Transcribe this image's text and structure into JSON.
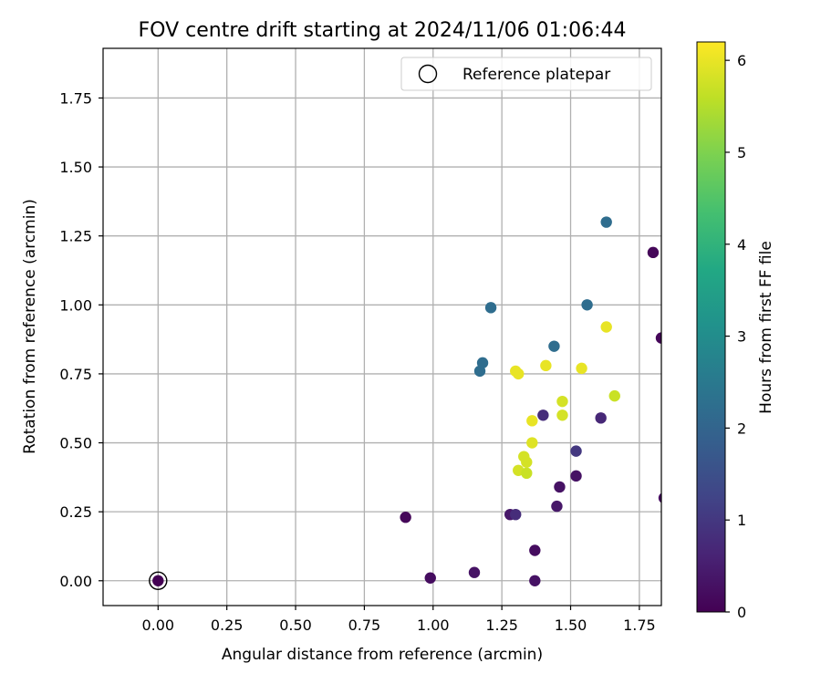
{
  "chart_data": {
    "type": "scatter",
    "title": "FOV centre drift starting at 2024/11/06 01:06:44",
    "xlabel": "Angular distance from reference (arcmin)",
    "ylabel": "Rotation from reference (arcmin)",
    "xlim": [
      -0.2,
      1.83
    ],
    "ylim": [
      -0.09,
      1.93
    ],
    "xticks": [
      "0.00",
      "0.25",
      "0.50",
      "0.75",
      "1.00",
      "1.25",
      "1.50",
      "1.75"
    ],
    "yticks": [
      "0.00",
      "0.25",
      "0.50",
      "0.75",
      "1.00",
      "1.25",
      "1.50",
      "1.75"
    ],
    "grid": true,
    "legend": {
      "placement": "top-right",
      "entries": [
        {
          "label": "Reference platepar",
          "marker": "open-circle"
        }
      ]
    },
    "reference_point": {
      "x": 0.0,
      "y": 0.0
    },
    "colorbar": {
      "label": "Hours from first FF file",
      "min": 0,
      "max": 6.2,
      "ticks": [
        "0",
        "1",
        "2",
        "3",
        "4",
        "5",
        "6"
      ],
      "colormap": "viridis"
    },
    "points": [
      {
        "x": 0.0,
        "y": 0.0,
        "h": 0.0
      },
      {
        "x": 0.9,
        "y": 0.23,
        "h": 0.1
      },
      {
        "x": 0.99,
        "y": 0.01,
        "h": 0.2
      },
      {
        "x": 1.15,
        "y": 0.03,
        "h": 0.3
      },
      {
        "x": 1.28,
        "y": 0.24,
        "h": 0.4
      },
      {
        "x": 1.3,
        "y": 0.24,
        "h": 0.8
      },
      {
        "x": 1.37,
        "y": 0.11,
        "h": 0.2
      },
      {
        "x": 1.37,
        "y": 0.0,
        "h": 0.3
      },
      {
        "x": 1.45,
        "y": 0.27,
        "h": 0.4
      },
      {
        "x": 1.46,
        "y": 0.34,
        "h": 0.3
      },
      {
        "x": 1.52,
        "y": 0.38,
        "h": 0.3
      },
      {
        "x": 1.52,
        "y": 0.47,
        "h": 1.0
      },
      {
        "x": 1.4,
        "y": 0.6,
        "h": 0.8
      },
      {
        "x": 1.61,
        "y": 0.59,
        "h": 0.7
      },
      {
        "x": 1.8,
        "y": 1.19,
        "h": 0.1
      },
      {
        "x": 1.83,
        "y": 0.88,
        "h": 0.1
      },
      {
        "x": 1.84,
        "y": 0.3,
        "h": 0.2
      },
      {
        "x": 1.17,
        "y": 0.76,
        "h": 2.2
      },
      {
        "x": 1.18,
        "y": 0.79,
        "h": 2.2
      },
      {
        "x": 1.21,
        "y": 0.99,
        "h": 2.2
      },
      {
        "x": 1.44,
        "y": 0.85,
        "h": 2.2
      },
      {
        "x": 1.56,
        "y": 1.0,
        "h": 2.2
      },
      {
        "x": 1.63,
        "y": 1.3,
        "h": 2.2
      },
      {
        "x": 1.3,
        "y": 0.76,
        "h": 6.0
      },
      {
        "x": 1.31,
        "y": 0.75,
        "h": 6.0
      },
      {
        "x": 1.41,
        "y": 0.78,
        "h": 6.0
      },
      {
        "x": 1.54,
        "y": 0.77,
        "h": 6.0
      },
      {
        "x": 1.63,
        "y": 0.92,
        "h": 6.0
      },
      {
        "x": 1.36,
        "y": 0.58,
        "h": 6.0
      },
      {
        "x": 1.36,
        "y": 0.5,
        "h": 5.9
      },
      {
        "x": 1.47,
        "y": 0.65,
        "h": 5.8
      },
      {
        "x": 1.47,
        "y": 0.6,
        "h": 5.8
      },
      {
        "x": 1.66,
        "y": 0.67,
        "h": 5.7
      },
      {
        "x": 1.31,
        "y": 0.4,
        "h": 5.8
      },
      {
        "x": 1.33,
        "y": 0.45,
        "h": 5.8
      },
      {
        "x": 1.34,
        "y": 0.43,
        "h": 5.8
      },
      {
        "x": 1.34,
        "y": 0.39,
        "h": 5.7
      }
    ]
  }
}
